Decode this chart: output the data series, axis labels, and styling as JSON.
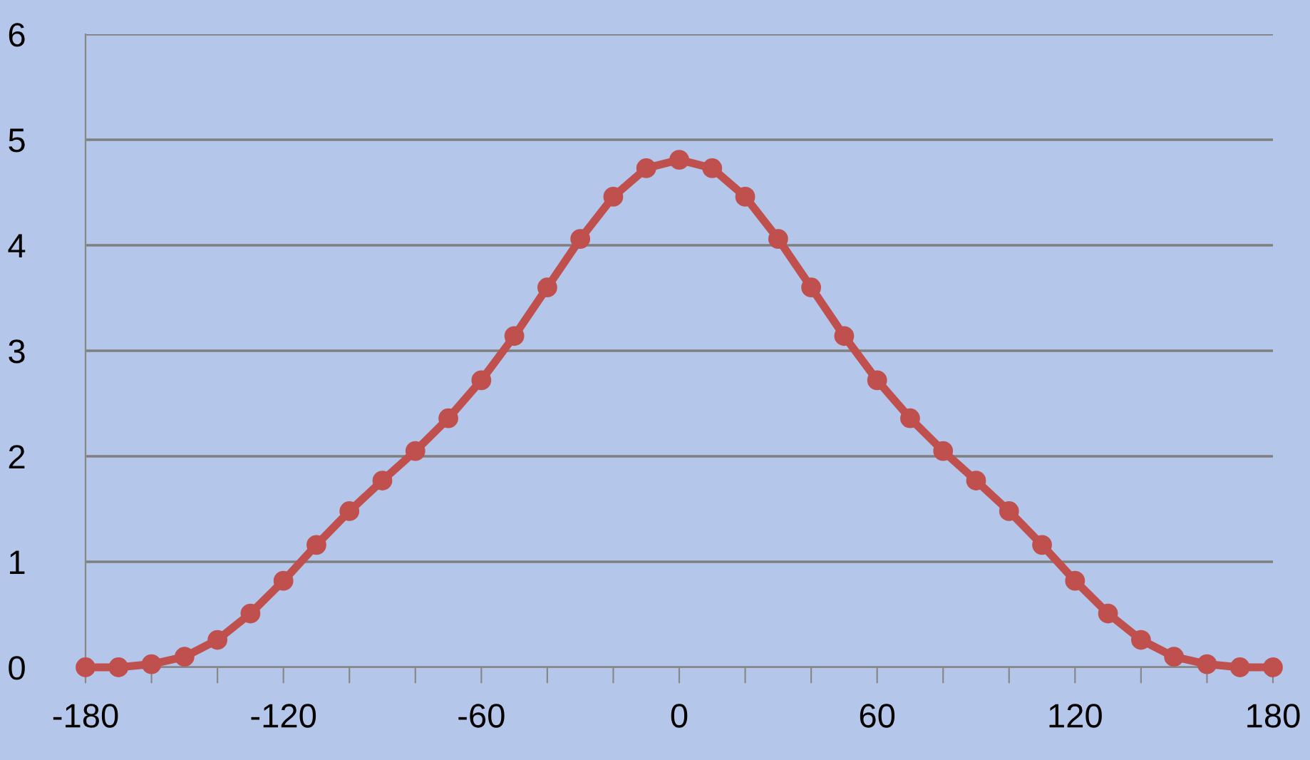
{
  "chart_data": {
    "type": "line",
    "x": [
      -180,
      -170,
      -160,
      -150,
      -140,
      -130,
      -120,
      -110,
      -100,
      -90,
      -80,
      -70,
      -60,
      -50,
      -40,
      -30,
      -20,
      -10,
      0,
      10,
      20,
      30,
      40,
      50,
      60,
      70,
      80,
      90,
      100,
      110,
      120,
      130,
      140,
      150,
      160,
      170,
      180
    ],
    "series": [
      {
        "color": "#c0504d",
        "values": [
          0,
          0,
          0.03,
          0.1,
          0.26,
          0.51,
          0.82,
          1.16,
          1.48,
          1.77,
          2.05,
          2.36,
          2.72,
          3.14,
          3.6,
          4.06,
          4.46,
          4.73,
          4.81,
          4.73,
          4.46,
          4.06,
          3.6,
          3.14,
          2.72,
          2.36,
          2.05,
          1.77,
          1.48,
          1.16,
          0.82,
          0.51,
          0.26,
          0.1,
          0.03,
          0,
          0
        ]
      }
    ],
    "xlim": [
      -180,
      180
    ],
    "ylim": [
      0,
      6
    ],
    "xticks": [
      -180,
      {
        "value": -160,
        "label": null
      },
      {
        "value": -140,
        "label": null
      },
      -120,
      {
        "value": -100,
        "label": null
      },
      {
        "value": -80,
        "label": null
      },
      -60,
      {
        "value": -40,
        "label": null
      },
      {
        "value": -20,
        "label": null
      },
      0,
      {
        "value": 20,
        "label": null
      },
      {
        "value": 40,
        "label": null
      },
      60,
      {
        "value": 80,
        "label": null
      },
      {
        "value": 100,
        "label": null
      },
      120,
      {
        "value": 140,
        "label": null
      },
      {
        "value": 160,
        "label": null
      },
      180
    ],
    "yticks": [
      0,
      1,
      2,
      3,
      4,
      5,
      6
    ],
    "grid": "y",
    "marker": "circle",
    "line_style": "solid"
  }
}
